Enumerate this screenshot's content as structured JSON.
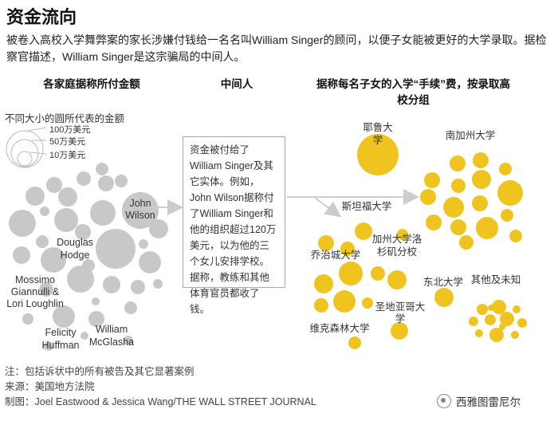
{
  "title": "资金流向",
  "intro": "被卷入高校入学舞弊案的家长涉嫌付钱给一名名叫William Singer的顾问，以便子女能被更好的大学录取。据检察官描述，William Singer是这宗骗局的中间人。",
  "columns": {
    "left": "各家庭据称所付金额",
    "middle": "中间人",
    "right": "据称每名子女的入学“手续”费，按录取高校分组"
  },
  "legend": {
    "title": "不同大小的圆所代表的金额",
    "items": [
      "100万美元",
      "50万美元",
      "10万美元"
    ]
  },
  "families": [
    "John Wilson",
    "Douglas Hodge",
    "Mossimo Giannulli & Lori Loughlin",
    "Felicity Huffman",
    "William McGlasha"
  ],
  "middleman_text": "资金被付给了William Singer及其它实体。例如，John Wilson据称付了William Singer和他的组织超过120万美元，以为他的三个女儿安排学校。据称，教练和其他体育官员都收了钱。",
  "schools": [
    "耶鲁大学",
    "南加州大学",
    "斯坦福大学",
    "加州大学洛杉矶分校",
    "乔治城大学",
    "东北大学",
    "其他及未知",
    "圣地亚哥大学",
    "维克森林大学"
  ],
  "footnote": {
    "note": "注：包括诉状中的所有被告及其它显著案例",
    "source": "来源：美国地方法院",
    "credit": "制图：Joel Eastwood & Jessica Wang/THE WALL STREET JOURNAL"
  },
  "watermark": "西雅图雷尼尔",
  "colors": {
    "family": "#c8c8c8",
    "school": "#f0c420",
    "arrow": "#cccccc"
  }
}
